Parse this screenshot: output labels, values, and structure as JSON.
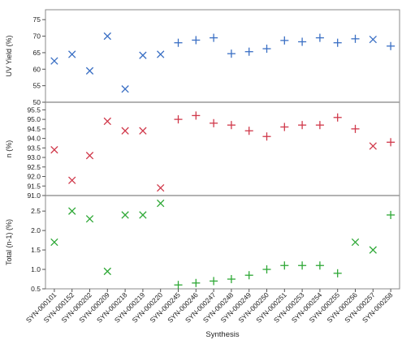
{
  "chart_data": {
    "type": "scatter",
    "xlabel": "Synthesis",
    "categories": [
      "SYN-000101",
      "SYN-000152",
      "SYN-000202",
      "SYN-000209",
      "SYN-000218",
      "SYN-000219",
      "SYN-000220",
      "SYN-000245",
      "SYN-000246",
      "SYN-000247",
      "SYN-000248",
      "SYN-000249",
      "SYN-000250",
      "SYN-000251",
      "SYN-000253",
      "SYN-000254",
      "SYN-000255",
      "SYN-000256",
      "SYN-000257",
      "SYN-000258"
    ],
    "panels": [
      {
        "ylabel": "UV Yield (%)",
        "ylim": [
          50,
          78
        ],
        "yticks": [
          "50",
          "55",
          "60",
          "65",
          "70",
          "75"
        ],
        "color": "#3a6fc4",
        "values": [
          62.5,
          64.5,
          59.5,
          70,
          54,
          64.2,
          64.5,
          68,
          68.8,
          69.5,
          64.7,
          65.3,
          66.2,
          68.7,
          68.3,
          69.5,
          68,
          69.2,
          69,
          67
        ],
        "markers": [
          "x",
          "x",
          "x",
          "x",
          "x",
          "x",
          "x",
          "+",
          "+",
          "+",
          "+",
          "+",
          "+",
          "+",
          "+",
          "+",
          "+",
          "+",
          "x",
          "+"
        ]
      },
      {
        "ylabel": "n (%)",
        "ylim": [
          91.0,
          95.9
        ],
        "yticks": [
          "91.0",
          "91.5",
          "92.0",
          "92.5",
          "93.0",
          "93.5",
          "94.0",
          "94.5",
          "95.0",
          "95.5"
        ],
        "color": "#d0384a",
        "values": [
          93.4,
          91.8,
          93.1,
          94.9,
          94.4,
          94.4,
          91.4,
          95.0,
          95.2,
          94.8,
          94.7,
          94.4,
          94.1,
          94.6,
          94.7,
          94.7,
          95.1,
          94.5,
          93.6,
          93.8
        ],
        "markers": [
          "x",
          "x",
          "x",
          "x",
          "x",
          "x",
          "x",
          "+",
          "+",
          "+",
          "+",
          "+",
          "+",
          "+",
          "+",
          "+",
          "+",
          "+",
          "x",
          "+"
        ]
      },
      {
        "ylabel": "Total (n-1) (%)",
        "ylim": [
          0.5,
          2.9
        ],
        "yticks": [
          "0.5",
          "1.0",
          "1.5",
          "2.0",
          "2.5"
        ],
        "color": "#2ea836",
        "values": [
          1.7,
          2.5,
          2.3,
          0.95,
          2.4,
          2.4,
          2.7,
          0.6,
          0.65,
          0.7,
          0.75,
          0.85,
          1.0,
          1.1,
          1.1,
          1.1,
          0.9,
          1.7,
          1.5,
          2.4
        ],
        "markers": [
          "x",
          "x",
          "x",
          "x",
          "x",
          "x",
          "x",
          "+",
          "+",
          "+",
          "+",
          "+",
          "+",
          "+",
          "+",
          "+",
          "+",
          "x",
          "x",
          "+"
        ]
      }
    ]
  }
}
